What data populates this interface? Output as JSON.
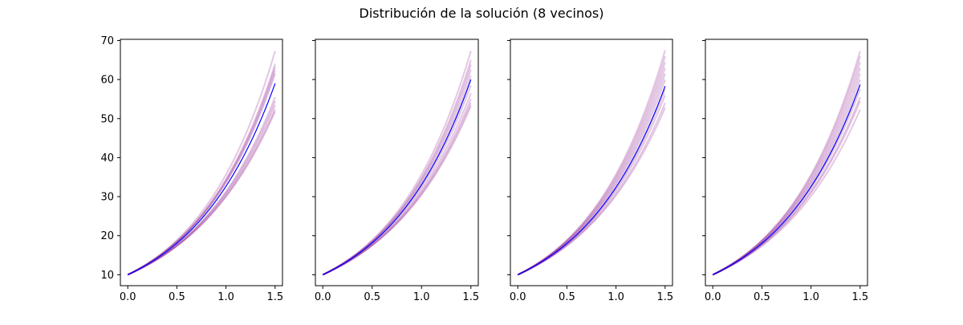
{
  "figure": {
    "title": "Distribución de la solución (8 vecinos)"
  },
  "colors": {
    "mean_line": "#0000ff",
    "samples": "#800080",
    "background": "#ffffff",
    "axes": "#000000"
  },
  "chart_data": [
    {
      "type": "line",
      "title": "",
      "xlabel": "",
      "ylabel": "",
      "xlim": [
        -0.075,
        1.575
      ],
      "ylim": [
        7.2,
        70.3
      ],
      "xticks": [
        "0.0",
        "0.5",
        "1.0",
        "1.5"
      ],
      "yticks": [
        "10",
        "20",
        "30",
        "40",
        "50",
        "60",
        "70"
      ],
      "show_ytick_labels": true,
      "grid": false,
      "x_range": [
        0,
        1.5
      ],
      "y_start": 10,
      "sample_endpoints": [
        67.3,
        64.0,
        63.2,
        62.3,
        61.5,
        55.5,
        54.5,
        53.5,
        52.4,
        51.8
      ],
      "mean_endpoint": 59.0
    },
    {
      "type": "line",
      "title": "",
      "xlabel": "",
      "ylabel": "",
      "xlim": [
        -0.075,
        1.575
      ],
      "ylim": [
        7.2,
        70.3
      ],
      "xticks": [
        "0.0",
        "0.5",
        "1.0",
        "1.5"
      ],
      "yticks": [
        "10",
        "20",
        "30",
        "40",
        "50",
        "60",
        "70"
      ],
      "show_ytick_labels": false,
      "grid": false,
      "x_range": [
        0,
        1.5
      ],
      "y_start": 10,
      "sample_endpoints": [
        67.3,
        65.0,
        63.8,
        62.5,
        61.0,
        58.5,
        56.5,
        55.0,
        54.0,
        53.2
      ],
      "mean_endpoint": 60.0
    },
    {
      "type": "line",
      "title": "",
      "xlabel": "",
      "ylabel": "",
      "xlim": [
        -0.075,
        1.575
      ],
      "ylim": [
        7.2,
        70.3
      ],
      "xticks": [
        "0.0",
        "0.5",
        "1.0",
        "1.5"
      ],
      "yticks": [
        "10",
        "20",
        "30",
        "40",
        "50",
        "60",
        "70"
      ],
      "show_ytick_labels": false,
      "grid": false,
      "x_range": [
        0,
        1.5
      ],
      "y_start": 10,
      "sample_endpoints": [
        67.5,
        66.0,
        64.5,
        63.0,
        61.5,
        60.0,
        57.5,
        56.0,
        54.0,
        52.8
      ],
      "mean_endpoint": 58.3
    },
    {
      "type": "line",
      "title": "",
      "xlabel": "",
      "ylabel": "",
      "xlim": [
        -0.075,
        1.575
      ],
      "ylim": [
        7.2,
        70.3
      ],
      "xticks": [
        "0.0",
        "0.5",
        "1.0",
        "1.5"
      ],
      "yticks": [
        "10",
        "20",
        "30",
        "40",
        "50",
        "60",
        "70"
      ],
      "show_ytick_labels": false,
      "grid": false,
      "x_range": [
        0,
        1.5
      ],
      "y_start": 10,
      "sample_endpoints": [
        67.3,
        66.0,
        64.5,
        63.0,
        61.5,
        60.0,
        57.5,
        55.5,
        54.5,
        52.3
      ],
      "mean_endpoint": 58.7
    }
  ]
}
